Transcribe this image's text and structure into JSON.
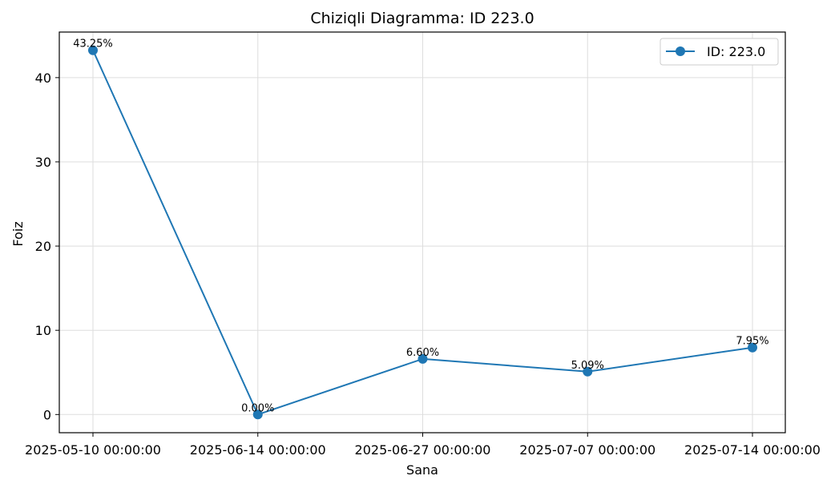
{
  "chart_data": {
    "type": "line",
    "title": "Chiziqli Diagramma: ID 223.0",
    "xlabel": "Sana",
    "ylabel": "Foiz",
    "categories": [
      "2025-05-10 00:00:00",
      "2025-06-14 00:00:00",
      "2025-06-27 00:00:00",
      "2025-07-07 00:00:00",
      "2025-07-14 00:00:00"
    ],
    "series": [
      {
        "name": "ID: 223.0",
        "values": [
          43.25,
          0.0,
          6.6,
          5.09,
          7.95
        ],
        "labels": [
          "43.25%",
          "0.00%",
          "6.60%",
          "5.09%",
          "7.95%"
        ],
        "color": "#1f77b4"
      }
    ],
    "yticks": [
      0,
      10,
      20,
      30,
      40
    ],
    "ylim": [
      -2.16,
      45.41
    ],
    "grid": true,
    "legend_position": "top-right"
  }
}
